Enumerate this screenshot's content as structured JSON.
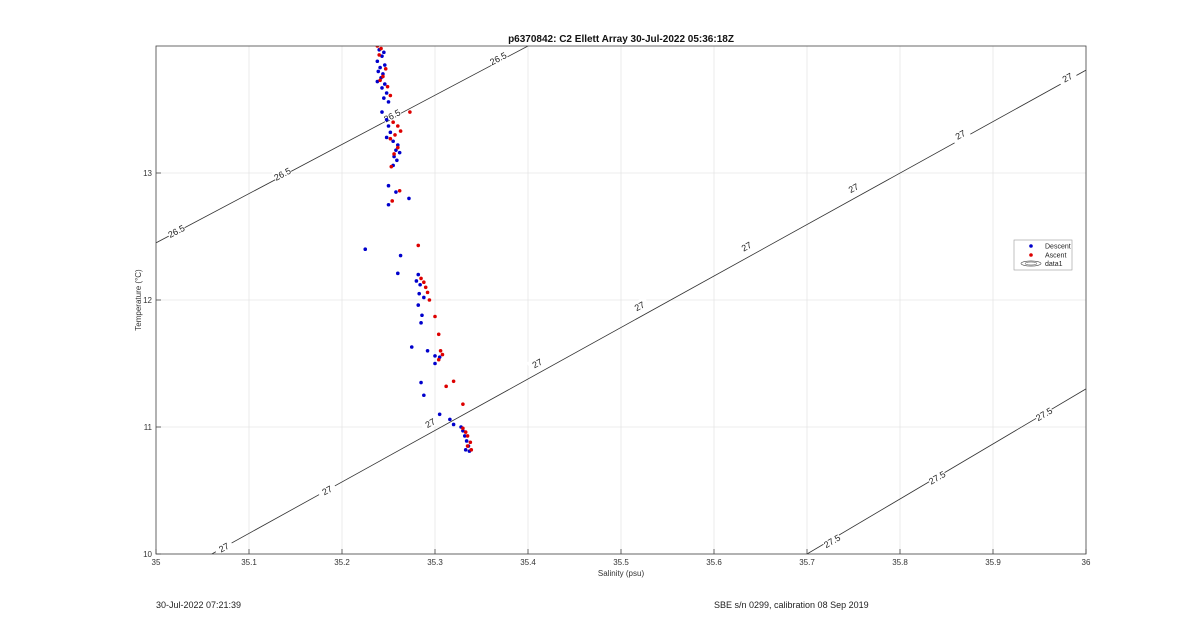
{
  "footer": {
    "left": "30-Jul-2022 07:21:39",
    "right": "SBE s/n 0299, calibration 08 Sep 2019"
  },
  "colors": {
    "descent": "#0000cc",
    "ascent": "#dd0000",
    "contour": "#333333",
    "grid": "#e6e6e6"
  },
  "chart_data": {
    "type": "scatter",
    "title": "p6370842: C2 Ellett Array 30-Jul-2022 05:36:18Z",
    "xlabel": "Salinity (psu)",
    "ylabel": "Temperature (°C)",
    "xlim": [
      35,
      36
    ],
    "ylim": [
      10,
      14
    ],
    "xticks": [
      35,
      35.1,
      35.2,
      35.3,
      35.4,
      35.5,
      35.6,
      35.7,
      35.8,
      35.9,
      36
    ],
    "yticks": [
      10,
      11,
      12,
      13
    ],
    "grid": true,
    "legend": {
      "placement": "right",
      "entries": [
        "Descent",
        "Ascent",
        "data1"
      ]
    },
    "contours": [
      {
        "level": "26.5",
        "points": [
          [
            35,
            12.45
          ],
          [
            35.4,
            14.0
          ]
        ],
        "labels": [
          [
            35.022,
            12.54
          ],
          [
            35.136,
            12.99
          ],
          [
            35.254,
            13.45
          ],
          [
            35.368,
            13.9
          ]
        ]
      },
      {
        "level": "27",
        "points": [
          [
            35.06,
            10.0
          ],
          [
            36,
            13.81
          ]
        ],
        "labels": [
          [
            35.073,
            10.05
          ],
          [
            35.184,
            10.5
          ],
          [
            35.295,
            11.03
          ],
          [
            35.41,
            11.5
          ],
          [
            35.52,
            11.95
          ],
          [
            35.635,
            12.42
          ],
          [
            35.75,
            12.88
          ],
          [
            35.865,
            13.3
          ],
          [
            35.98,
            13.75
          ]
        ]
      },
      {
        "level": "27.5",
        "points": [
          [
            35.7,
            10.0
          ],
          [
            36,
            11.3
          ]
        ],
        "labels": [
          [
            35.727,
            10.1
          ],
          [
            35.84,
            10.6
          ],
          [
            35.955,
            11.1
          ]
        ]
      }
    ],
    "series": [
      {
        "name": "Descent",
        "points": [
          [
            35.24,
            13.97
          ],
          [
            35.245,
            13.95
          ],
          [
            35.243,
            13.92
          ],
          [
            35.238,
            13.88
          ],
          [
            35.246,
            13.85
          ],
          [
            35.241,
            13.83
          ],
          [
            35.239,
            13.8
          ],
          [
            35.244,
            13.78
          ],
          [
            35.242,
            13.75
          ],
          [
            35.238,
            13.72
          ],
          [
            35.246,
            13.7
          ],
          [
            35.243,
            13.67
          ],
          [
            35.248,
            13.63
          ],
          [
            35.245,
            13.59
          ],
          [
            35.25,
            13.56
          ],
          [
            35.243,
            13.48
          ],
          [
            35.248,
            13.42
          ],
          [
            35.25,
            13.37
          ],
          [
            35.252,
            13.32
          ],
          [
            35.248,
            13.28
          ],
          [
            35.255,
            13.25
          ],
          [
            35.26,
            13.22
          ],
          [
            35.258,
            13.18
          ],
          [
            35.262,
            13.16
          ],
          [
            35.256,
            13.13
          ],
          [
            35.259,
            13.1
          ],
          [
            35.255,
            13.06
          ],
          [
            35.25,
            12.9
          ],
          [
            35.258,
            12.85
          ],
          [
            35.272,
            12.8
          ],
          [
            35.25,
            12.75
          ],
          [
            35.225,
            12.4
          ],
          [
            35.263,
            12.35
          ],
          [
            35.26,
            12.21
          ],
          [
            35.282,
            12.2
          ],
          [
            35.28,
            12.15
          ],
          [
            35.284,
            12.12
          ],
          [
            35.283,
            12.05
          ],
          [
            35.288,
            12.02
          ],
          [
            35.282,
            11.96
          ],
          [
            35.286,
            11.88
          ],
          [
            35.285,
            11.82
          ],
          [
            35.275,
            11.63
          ],
          [
            35.292,
            11.6
          ],
          [
            35.3,
            11.56
          ],
          [
            35.305,
            11.55
          ],
          [
            35.3,
            11.5
          ],
          [
            35.285,
            11.35
          ],
          [
            35.288,
            11.25
          ],
          [
            35.305,
            11.1
          ],
          [
            35.316,
            11.06
          ],
          [
            35.32,
            11.02
          ],
          [
            35.328,
            11.0
          ],
          [
            35.33,
            10.97
          ],
          [
            35.332,
            10.93
          ],
          [
            35.334,
            10.89
          ],
          [
            35.336,
            10.85
          ],
          [
            35.333,
            10.82
          ],
          [
            35.337,
            10.81
          ]
        ]
      },
      {
        "name": "Ascent",
        "points": [
          [
            35.238,
            14.0
          ],
          [
            35.242,
            13.98
          ],
          [
            35.24,
            13.93
          ],
          [
            35.247,
            13.82
          ],
          [
            35.244,
            13.76
          ],
          [
            35.241,
            13.73
          ],
          [
            35.249,
            13.68
          ],
          [
            35.252,
            13.61
          ],
          [
            35.273,
            13.48
          ],
          [
            35.255,
            13.4
          ],
          [
            35.26,
            13.37
          ],
          [
            35.263,
            13.33
          ],
          [
            35.257,
            13.3
          ],
          [
            35.252,
            13.27
          ],
          [
            35.26,
            13.2
          ],
          [
            35.256,
            13.15
          ],
          [
            35.253,
            13.05
          ],
          [
            35.262,
            12.86
          ],
          [
            35.254,
            12.78
          ],
          [
            35.282,
            12.43
          ],
          [
            35.285,
            12.17
          ],
          [
            35.288,
            12.14
          ],
          [
            35.29,
            12.1
          ],
          [
            35.292,
            12.06
          ],
          [
            35.294,
            12.0
          ],
          [
            35.3,
            11.87
          ],
          [
            35.304,
            11.73
          ],
          [
            35.306,
            11.6
          ],
          [
            35.308,
            11.57
          ],
          [
            35.304,
            11.53
          ],
          [
            35.32,
            11.36
          ],
          [
            35.312,
            11.32
          ],
          [
            35.33,
            11.18
          ],
          [
            35.33,
            10.99
          ],
          [
            35.333,
            10.96
          ],
          [
            35.335,
            10.93
          ],
          [
            35.338,
            10.88
          ],
          [
            35.335,
            10.85
          ],
          [
            35.339,
            10.82
          ]
        ]
      }
    ]
  }
}
